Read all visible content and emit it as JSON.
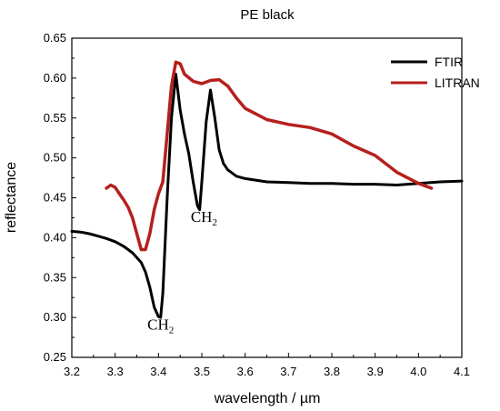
{
  "chart_data": {
    "type": "line",
    "title": "PE black",
    "xlabel": "wavelength / µm",
    "ylabel": "reflectance",
    "xlim": [
      3.2,
      4.1
    ],
    "ylim": [
      0.25,
      0.65
    ],
    "xticks": [
      "3.2",
      "3.3",
      "3.4",
      "3.5",
      "3.6",
      "3.7",
      "3.8",
      "3.9",
      "4.0",
      "4.1"
    ],
    "yticks": [
      "0.25",
      "0.30",
      "0.35",
      "0.40",
      "0.45",
      "0.50",
      "0.55",
      "0.60",
      "0.65"
    ],
    "legend_position": "top-right",
    "grid": false,
    "series": [
      {
        "name": "FTIR",
        "color": "#000000",
        "x": [
          3.2,
          3.22,
          3.24,
          3.26,
          3.28,
          3.3,
          3.32,
          3.34,
          3.36,
          3.37,
          3.38,
          3.39,
          3.4,
          3.405,
          3.41,
          3.42,
          3.43,
          3.44,
          3.45,
          3.46,
          3.47,
          3.48,
          3.49,
          3.495,
          3.5,
          3.51,
          3.52,
          3.53,
          3.54,
          3.55,
          3.56,
          3.58,
          3.6,
          3.65,
          3.7,
          3.75,
          3.8,
          3.85,
          3.9,
          3.95,
          4.0,
          4.05,
          4.1
        ],
        "y": [
          0.408,
          0.407,
          0.405,
          0.402,
          0.399,
          0.395,
          0.389,
          0.381,
          0.369,
          0.357,
          0.338,
          0.313,
          0.301,
          0.3,
          0.33,
          0.45,
          0.55,
          0.605,
          0.56,
          0.53,
          0.505,
          0.47,
          0.44,
          0.435,
          0.47,
          0.545,
          0.585,
          0.55,
          0.51,
          0.493,
          0.485,
          0.477,
          0.474,
          0.47,
          0.469,
          0.468,
          0.468,
          0.467,
          0.467,
          0.466,
          0.468,
          0.47,
          0.471
        ]
      },
      {
        "name": "LITRAN",
        "color": "#b5201e",
        "x": [
          3.28,
          3.29,
          3.3,
          3.31,
          3.32,
          3.33,
          3.34,
          3.35,
          3.36,
          3.37,
          3.38,
          3.39,
          3.4,
          3.41,
          3.42,
          3.43,
          3.44,
          3.45,
          3.46,
          3.48,
          3.5,
          3.52,
          3.54,
          3.56,
          3.58,
          3.6,
          3.65,
          3.7,
          3.75,
          3.8,
          3.85,
          3.9,
          3.95,
          4.0,
          4.03
        ],
        "y": [
          0.462,
          0.466,
          0.463,
          0.455,
          0.447,
          0.438,
          0.425,
          0.405,
          0.385,
          0.385,
          0.405,
          0.435,
          0.455,
          0.47,
          0.53,
          0.59,
          0.62,
          0.618,
          0.605,
          0.596,
          0.593,
          0.597,
          0.598,
          0.59,
          0.575,
          0.562,
          0.548,
          0.542,
          0.538,
          0.53,
          0.515,
          0.503,
          0.482,
          0.468,
          0.462
        ]
      }
    ],
    "annotations": [
      {
        "base": "CH",
        "sub": "2",
        "x": 3.405,
        "y": 0.285
      },
      {
        "base": "CH",
        "sub": "2",
        "x": 3.505,
        "y": 0.42
      }
    ]
  }
}
